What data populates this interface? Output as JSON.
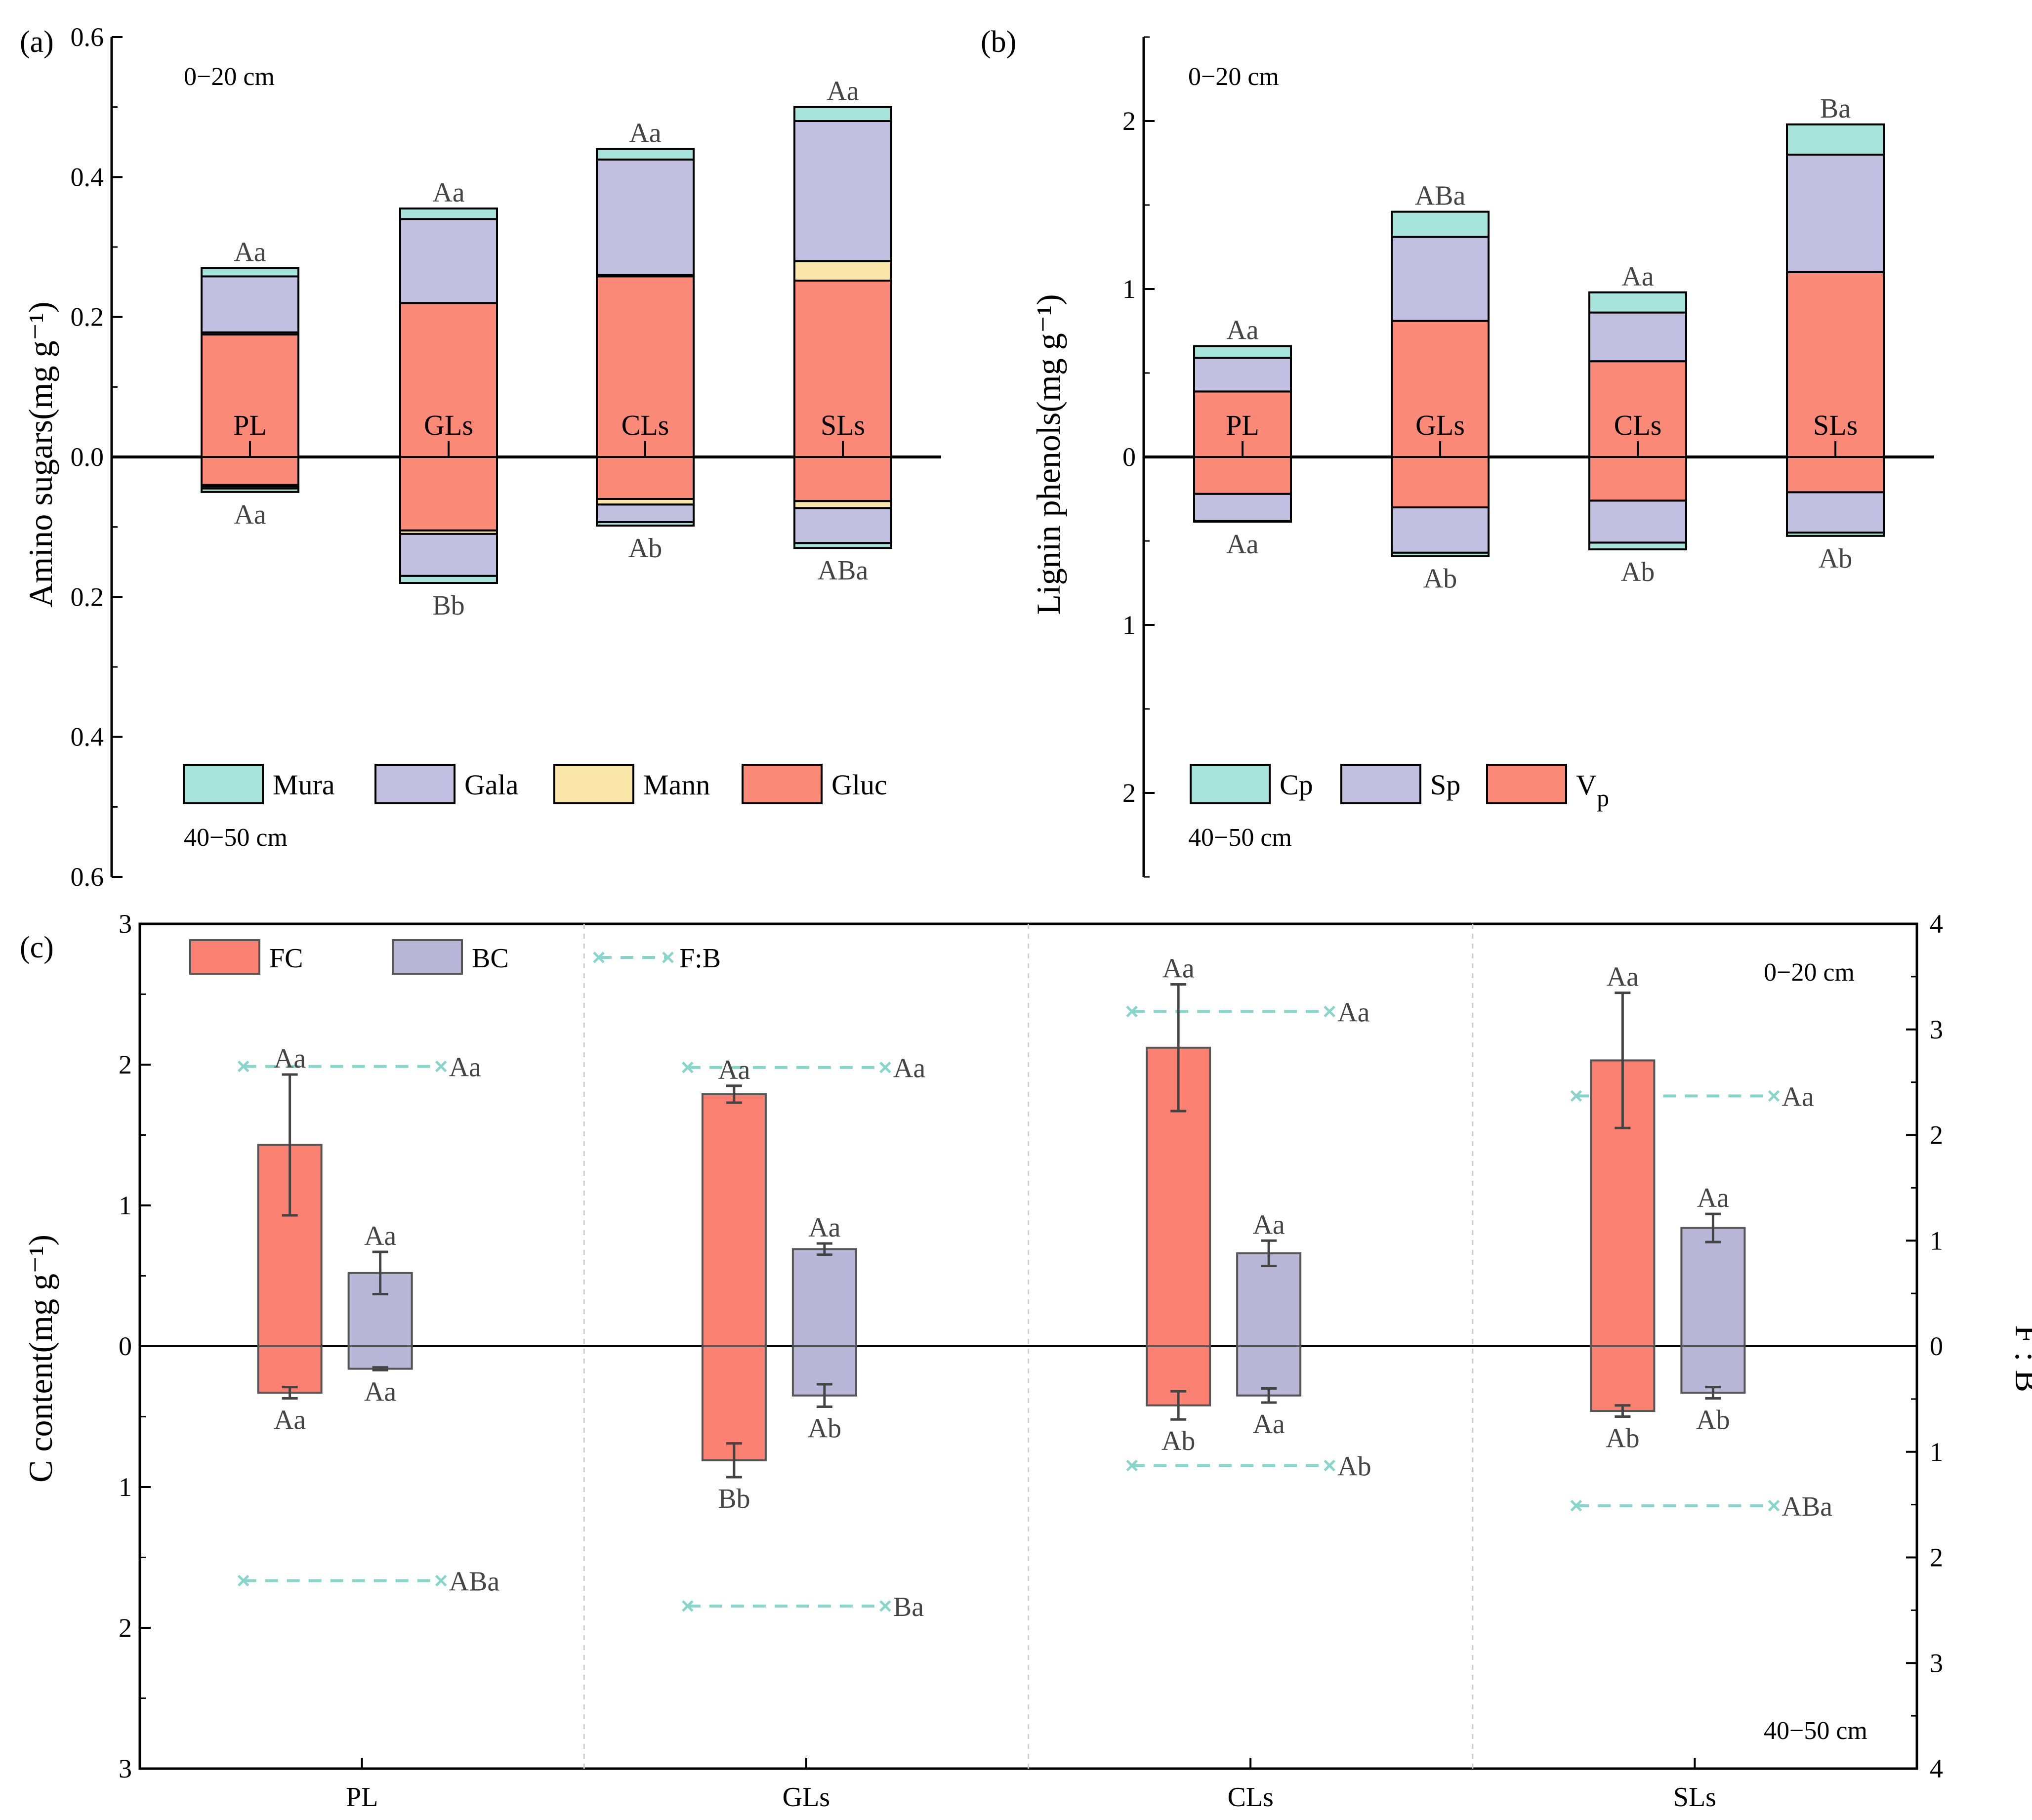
{
  "colors": {
    "Mura": "#a6e3da",
    "Gala": "#c2c0e1",
    "Mann": "#f9e6a8",
    "Gluc": "#fa8978",
    "Cp": "#a6e3da",
    "Sp": "#c2c0e1",
    "Vp": "#fa8978",
    "FC": "#fa8072",
    "BC": "#b9b6d8",
    "FB_line": "#88d6cb",
    "axis": "#000000",
    "err": "#444444",
    "text": "#444444",
    "divider": "#cfcfcf"
  },
  "chart_data": [
    {
      "panel": "(a)",
      "type": "bar",
      "stacked": true,
      "diverging": true,
      "ylabel": "Amino sugars(mg g⁻¹)",
      "ylim": [
        -0.6,
        0.6
      ],
      "yticks": [
        {
          "value": 0.6,
          "label": "0.6"
        },
        {
          "value": 0.4,
          "label": "0.4"
        },
        {
          "value": 0.2,
          "label": "0.2"
        },
        {
          "value": 0.0,
          "label": "0.0"
        },
        {
          "value": -0.2,
          "label": "0.2"
        },
        {
          "value": -0.4,
          "label": "0.4"
        },
        {
          "value": -0.6,
          "label": "0.6"
        }
      ],
      "top_depth_label": "0−20 cm",
      "bottom_depth_label": "40−50 cm",
      "categories": [
        "PL",
        "GLs",
        "CLs",
        "SLs"
      ],
      "series": [
        {
          "name": "Gluc",
          "top": [
            0.175,
            0.22,
            0.258,
            0.252
          ],
          "bottom": [
            0.04,
            0.105,
            0.06,
            0.063
          ]
        },
        {
          "name": "Mann",
          "top": [
            0.003,
            0.0,
            0.002,
            0.028
          ],
          "bottom": [
            0.002,
            0.005,
            0.008,
            0.01
          ]
        },
        {
          "name": "Gala",
          "top": [
            0.08,
            0.12,
            0.165,
            0.2
          ],
          "bottom": [
            0.003,
            0.06,
            0.025,
            0.05
          ]
        },
        {
          "name": "Mura",
          "top": [
            0.012,
            0.015,
            0.015,
            0.02
          ],
          "bottom": [
            0.005,
            0.01,
            0.005,
            0.007
          ]
        }
      ],
      "top_letters": [
        "Aa",
        "Aa",
        "Aa",
        "Aa"
      ],
      "bottom_letters": [
        "Aa",
        "Bb",
        "Ab",
        "ABa"
      ],
      "legend": [
        "Mura",
        "Gala",
        "Mann",
        "Gluc"
      ]
    },
    {
      "panel": "(b)",
      "type": "bar",
      "stacked": true,
      "diverging": true,
      "ylabel": "Lignin phenols(mg g⁻¹)",
      "ylim": [
        -2.5,
        2.5
      ],
      "yticks": [
        {
          "value": 2,
          "label": "2"
        },
        {
          "value": 1,
          "label": "1"
        },
        {
          "value": 0,
          "label": "0"
        },
        {
          "value": -1,
          "label": "1"
        },
        {
          "value": -2,
          "label": "2"
        }
      ],
      "top_depth_label": "0−20 cm",
      "bottom_depth_label": "40−50 cm",
      "categories": [
        "PL",
        "GLs",
        "CLs",
        "SLs"
      ],
      "series": [
        {
          "name": "Vp",
          "top": [
            0.39,
            0.81,
            0.57,
            1.1
          ],
          "bottom": [
            0.22,
            0.3,
            0.26,
            0.21
          ]
        },
        {
          "name": "Sp",
          "top": [
            0.2,
            0.5,
            0.29,
            0.7
          ],
          "bottom": [
            0.16,
            0.27,
            0.25,
            0.24
          ]
        },
        {
          "name": "Cp",
          "top": [
            0.07,
            0.15,
            0.12,
            0.18
          ],
          "bottom": [
            0.005,
            0.02,
            0.04,
            0.02
          ]
        }
      ],
      "top_letters": [
        "Aa",
        "ABa",
        "Aa",
        "Ba"
      ],
      "bottom_letters": [
        "Aa",
        "Ab",
        "Ab",
        "Ab"
      ],
      "legend": [
        "Cp",
        "Sp",
        "Vp"
      ],
      "legend_labels": {
        "Cp": "Cp",
        "Sp": "Sp",
        "Vp": "V",
        "Vp_sub": "p"
      }
    },
    {
      "panel": "(c)",
      "type": "bar",
      "diverging": true,
      "ylabel": "C content(mg g⁻¹)",
      "y2label": "F : B",
      "ylim": [
        -3,
        3
      ],
      "y2lim": [
        -4,
        4
      ],
      "yticks": [
        {
          "value": 3,
          "label": "3"
        },
        {
          "value": 2,
          "label": "2"
        },
        {
          "value": 1,
          "label": "1"
        },
        {
          "value": 0,
          "label": "0"
        },
        {
          "value": -1,
          "label": "1"
        },
        {
          "value": -2,
          "label": "2"
        },
        {
          "value": -3,
          "label": "3"
        }
      ],
      "y2ticks": [
        {
          "value": 4,
          "label": "4"
        },
        {
          "value": 3,
          "label": "3"
        },
        {
          "value": 2,
          "label": "2"
        },
        {
          "value": 1,
          "label": "1"
        },
        {
          "value": 0,
          "label": "0"
        },
        {
          "value": -1,
          "label": "1"
        },
        {
          "value": -2,
          "label": "2"
        },
        {
          "value": -3,
          "label": "3"
        },
        {
          "value": -4,
          "label": "4"
        }
      ],
      "top_depth_label": "0−20 cm",
      "bottom_depth_label": "40−50 cm",
      "categories": [
        "PL",
        "GLs",
        "CLs",
        "SLs"
      ],
      "series": [
        {
          "name": "FC",
          "top": [
            1.43,
            1.79,
            2.12,
            2.03
          ],
          "top_err": [
            0.5,
            0.06,
            0.45,
            0.48
          ],
          "bottom": [
            0.33,
            0.81,
            0.42,
            0.46
          ],
          "bottom_err": [
            0.04,
            0.12,
            0.1,
            0.04
          ]
        },
        {
          "name": "BC",
          "top": [
            0.52,
            0.69,
            0.66,
            0.84
          ],
          "top_err": [
            0.15,
            0.04,
            0.09,
            0.1
          ],
          "bottom": [
            0.16,
            0.35,
            0.35,
            0.33
          ],
          "bottom_err": [
            0.01,
            0.08,
            0.05,
            0.04
          ]
        }
      ],
      "fb_ratio": {
        "name": "F:B",
        "top": [
          2.65,
          2.64,
          3.17,
          2.37
        ],
        "bottom": [
          2.22,
          2.46,
          1.13,
          1.51
        ]
      },
      "fc_top_letters": [
        "Aa",
        "Aa",
        "Aa",
        "Aa"
      ],
      "fc_bottom_letters": [
        "Aa",
        "Bb",
        "Ab",
        "Ab"
      ],
      "bc_top_letters": [
        "Aa",
        "Aa",
        "Aa",
        "Aa"
      ],
      "bc_bottom_letters": [
        "Aa",
        "Ab",
        "Aa",
        "Ab"
      ],
      "fb_top_letters": [
        "Aa",
        "Aa",
        "Aa",
        "Aa"
      ],
      "fb_bottom_letters": [
        "ABa",
        "Ba",
        "Ab",
        "ABa"
      ],
      "legend": [
        "FC",
        "BC",
        "F:B"
      ]
    }
  ]
}
